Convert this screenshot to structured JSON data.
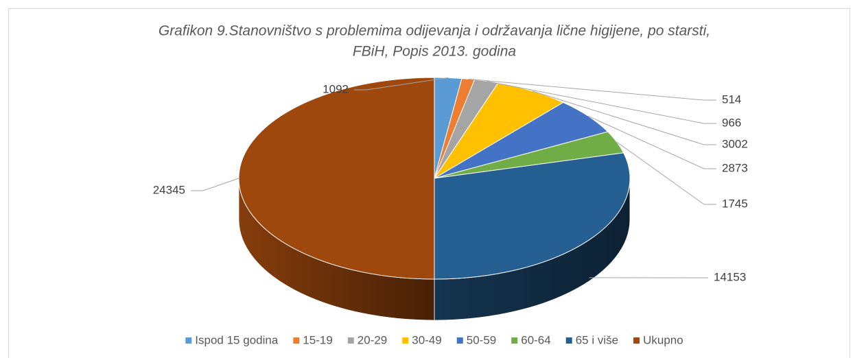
{
  "chart_data": {
    "type": "pie",
    "title": [
      "Grafikon 9.Stanovništvo s problemima odijevanja i održavanja lične higijene, po starsti,",
      "FBiH, Popis 2013. godina"
    ],
    "categories": [
      "Ispod 15 godina",
      "15-19",
      "20-29",
      "30-49",
      "50-59",
      "60-64",
      "65 i više",
      "Ukupno"
    ],
    "values": [
      1092,
      514,
      966,
      3002,
      2873,
      1745,
      14153,
      24345
    ],
    "colors": [
      "#5b9bd5",
      "#ed7d31",
      "#a5a5a5",
      "#ffc000",
      "#4472c4",
      "#70ad47",
      "#255e91",
      "#9e480e"
    ],
    "legend": "bottom"
  }
}
